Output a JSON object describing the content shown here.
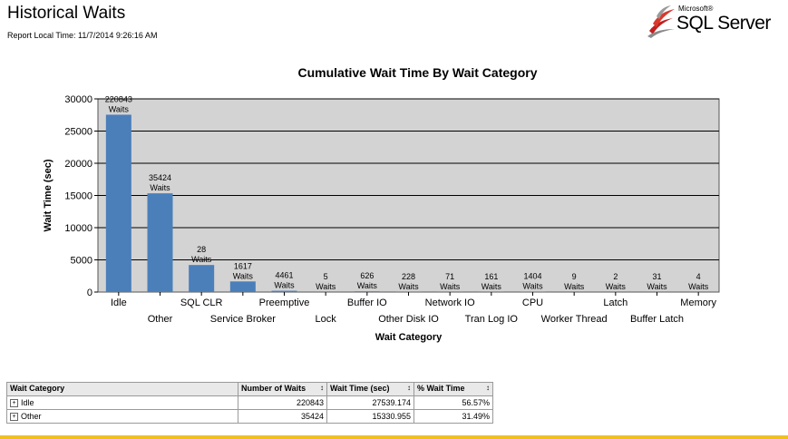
{
  "report": {
    "title": "Historical Waits",
    "local_time": "Report Local Time: 11/7/2014 9:26:16 AM"
  },
  "logo": {
    "small": "Microsoft®",
    "product": "SQL Server"
  },
  "colors": {
    "bar": "#4a7fba",
    "plot_bg": "#d3d3d3",
    "accent": "#f0c020"
  },
  "chart_data": {
    "type": "bar",
    "title": "Cumulative Wait Time By Wait Category",
    "xlabel": "Wait Category",
    "ylabel": "Wait Time (sec)",
    "ylim": [
      0,
      30000
    ],
    "yticks": [
      0,
      5000,
      10000,
      15000,
      20000,
      25000,
      30000
    ],
    "grid": true,
    "categories": [
      "Idle",
      "Other",
      "SQL CLR",
      "Service Broker",
      "Preemptive",
      "Lock",
      "Buffer IO",
      "Other Disk IO",
      "Network IO",
      "Tran Log IO",
      "CPU",
      "Worker Thread",
      "Latch",
      "Buffer Latch",
      "Memory"
    ],
    "values": [
      27539.174,
      15330.955,
      4200,
      1650,
      200,
      5,
      120,
      30,
      20,
      25,
      80,
      2,
      1,
      10,
      1
    ],
    "labels": [
      [
        "220843",
        "Waits"
      ],
      [
        "35424",
        "Waits"
      ],
      [
        "28",
        "Waits"
      ],
      [
        "1617",
        "Waits"
      ],
      [
        "4461",
        "Waits"
      ],
      [
        "5",
        "Waits"
      ],
      [
        "626",
        "Waits"
      ],
      [
        "228",
        "Waits"
      ],
      [
        "71",
        "Waits"
      ],
      [
        "161",
        "Waits"
      ],
      [
        "1404",
        "Waits"
      ],
      [
        "9",
        "Waits"
      ],
      [
        "2",
        "Waits"
      ],
      [
        "31",
        "Waits"
      ],
      [
        "4",
        "Waits"
      ]
    ]
  },
  "table": {
    "headers": [
      "Wait Category",
      "Number of Waits",
      "Wait Time (sec)",
      "% Wait Time"
    ],
    "sort_glyph": "↕",
    "expand_glyph": "+",
    "rows": [
      {
        "category": "Idle",
        "waits": "220843",
        "time": "27539.174",
        "pct": "56.57%"
      },
      {
        "category": "Other",
        "waits": "35424",
        "time": "15330.955",
        "pct": "31.49%"
      }
    ]
  }
}
